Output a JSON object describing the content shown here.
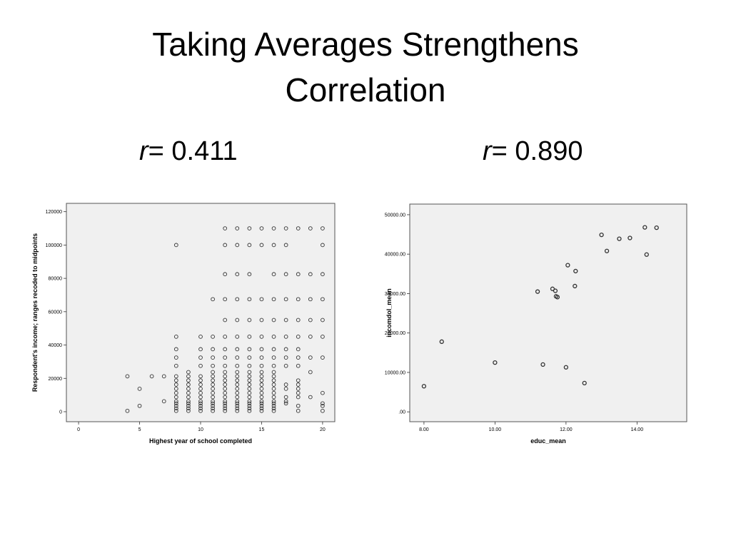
{
  "slide": {
    "title_line1": "Taking Averages Strengthens",
    "title_line2": "Correlation",
    "r_symbol": "r",
    "left_r_text": "= 0.411",
    "right_r_text": "= 0.890"
  },
  "chart_data": [
    {
      "type": "scatter",
      "title": "",
      "xlabel": "Highest year of school completed",
      "ylabel": "Respondent's income; ranges recoded to midpoints",
      "xlim": [
        -1,
        21
      ],
      "ylim": [
        -6000,
        125000
      ],
      "xticks": [
        0,
        5,
        10,
        15,
        20
      ],
      "yticks": [
        0,
        20000,
        40000,
        60000,
        80000,
        100000,
        120000
      ],
      "xtick_labels": [
        "0",
        "5",
        "10",
        "15",
        "20"
      ],
      "ytick_labels": [
        "0",
        "20000",
        "40000",
        "60000",
        "80000",
        "100000",
        "120000"
      ],
      "grid": false,
      "background": "#f0f0f0",
      "marker_color": "#333333",
      "points": [
        [
          4,
          500
        ],
        [
          4,
          21250
        ],
        [
          5,
          3500
        ],
        [
          5,
          13750
        ],
        [
          6,
          21250
        ],
        [
          7,
          6250
        ],
        [
          7,
          21250
        ],
        [
          8,
          500
        ],
        [
          8,
          2000
        ],
        [
          8,
          3500
        ],
        [
          8,
          5000
        ],
        [
          8,
          6250
        ],
        [
          8,
          8750
        ],
        [
          8,
          11250
        ],
        [
          8,
          13750
        ],
        [
          8,
          16250
        ],
        [
          8,
          18750
        ],
        [
          8,
          21250
        ],
        [
          8,
          27500
        ],
        [
          8,
          32500
        ],
        [
          8,
          37500
        ],
        [
          8,
          45000
        ],
        [
          8,
          100000
        ],
        [
          9,
          500
        ],
        [
          9,
          2000
        ],
        [
          9,
          3500
        ],
        [
          9,
          5000
        ],
        [
          9,
          6250
        ],
        [
          9,
          8750
        ],
        [
          9,
          11250
        ],
        [
          9,
          13750
        ],
        [
          9,
          16250
        ],
        [
          9,
          18750
        ],
        [
          9,
          21250
        ],
        [
          9,
          23750
        ],
        [
          10,
          500
        ],
        [
          10,
          2000
        ],
        [
          10,
          3500
        ],
        [
          10,
          5000
        ],
        [
          10,
          6250
        ],
        [
          10,
          8750
        ],
        [
          10,
          11250
        ],
        [
          10,
          13750
        ],
        [
          10,
          16250
        ],
        [
          10,
          18750
        ],
        [
          10,
          21250
        ],
        [
          10,
          27500
        ],
        [
          10,
          32500
        ],
        [
          10,
          37500
        ],
        [
          10,
          45000
        ],
        [
          11,
          500
        ],
        [
          11,
          2000
        ],
        [
          11,
          3500
        ],
        [
          11,
          5000
        ],
        [
          11,
          6250
        ],
        [
          11,
          8750
        ],
        [
          11,
          11250
        ],
        [
          11,
          13750
        ],
        [
          11,
          16250
        ],
        [
          11,
          18750
        ],
        [
          11,
          21250
        ],
        [
          11,
          23750
        ],
        [
          11,
          27500
        ],
        [
          11,
          32500
        ],
        [
          11,
          37500
        ],
        [
          11,
          45000
        ],
        [
          11,
          67500
        ],
        [
          12,
          500
        ],
        [
          12,
          2000
        ],
        [
          12,
          3500
        ],
        [
          12,
          5000
        ],
        [
          12,
          6250
        ],
        [
          12,
          8750
        ],
        [
          12,
          11250
        ],
        [
          12,
          13750
        ],
        [
          12,
          16250
        ],
        [
          12,
          18750
        ],
        [
          12,
          21250
        ],
        [
          12,
          23750
        ],
        [
          12,
          27500
        ],
        [
          12,
          32500
        ],
        [
          12,
          37500
        ],
        [
          12,
          45000
        ],
        [
          12,
          55000
        ],
        [
          12,
          67500
        ],
        [
          12,
          82500
        ],
        [
          12,
          100000
        ],
        [
          12,
          110000
        ],
        [
          13,
          500
        ],
        [
          13,
          2000
        ],
        [
          13,
          3500
        ],
        [
          13,
          5000
        ],
        [
          13,
          6250
        ],
        [
          13,
          8750
        ],
        [
          13,
          11250
        ],
        [
          13,
          13750
        ],
        [
          13,
          16250
        ],
        [
          13,
          18750
        ],
        [
          13,
          21250
        ],
        [
          13,
          23750
        ],
        [
          13,
          27500
        ],
        [
          13,
          32500
        ],
        [
          13,
          37500
        ],
        [
          13,
          45000
        ],
        [
          13,
          55000
        ],
        [
          13,
          67500
        ],
        [
          13,
          82500
        ],
        [
          13,
          100000
        ],
        [
          13,
          110000
        ],
        [
          14,
          500
        ],
        [
          14,
          2000
        ],
        [
          14,
          3500
        ],
        [
          14,
          5000
        ],
        [
          14,
          6250
        ],
        [
          14,
          8750
        ],
        [
          14,
          11250
        ],
        [
          14,
          13750
        ],
        [
          14,
          16250
        ],
        [
          14,
          18750
        ],
        [
          14,
          21250
        ],
        [
          14,
          23750
        ],
        [
          14,
          27500
        ],
        [
          14,
          32500
        ],
        [
          14,
          37500
        ],
        [
          14,
          45000
        ],
        [
          14,
          55000
        ],
        [
          14,
          67500
        ],
        [
          14,
          82500
        ],
        [
          14,
          100000
        ],
        [
          14,
          110000
        ],
        [
          15,
          500
        ],
        [
          15,
          2000
        ],
        [
          15,
          3500
        ],
        [
          15,
          5000
        ],
        [
          15,
          6250
        ],
        [
          15,
          8750
        ],
        [
          15,
          11250
        ],
        [
          15,
          13750
        ],
        [
          15,
          16250
        ],
        [
          15,
          18750
        ],
        [
          15,
          21250
        ],
        [
          15,
          23750
        ],
        [
          15,
          27500
        ],
        [
          15,
          32500
        ],
        [
          15,
          37500
        ],
        [
          15,
          45000
        ],
        [
          15,
          55000
        ],
        [
          15,
          67500
        ],
        [
          15,
          100000
        ],
        [
          15,
          110000
        ],
        [
          16,
          500
        ],
        [
          16,
          2000
        ],
        [
          16,
          3500
        ],
        [
          16,
          5000
        ],
        [
          16,
          6250
        ],
        [
          16,
          8750
        ],
        [
          16,
          11250
        ],
        [
          16,
          13750
        ],
        [
          16,
          16250
        ],
        [
          16,
          18750
        ],
        [
          16,
          21250
        ],
        [
          16,
          23750
        ],
        [
          16,
          27500
        ],
        [
          16,
          32500
        ],
        [
          16,
          37500
        ],
        [
          16,
          45000
        ],
        [
          16,
          55000
        ],
        [
          16,
          67500
        ],
        [
          16,
          82500
        ],
        [
          16,
          100000
        ],
        [
          16,
          110000
        ],
        [
          17,
          5000
        ],
        [
          17,
          6250
        ],
        [
          17,
          8750
        ],
        [
          17,
          13750
        ],
        [
          17,
          16250
        ],
        [
          17,
          27500
        ],
        [
          17,
          32500
        ],
        [
          17,
          37500
        ],
        [
          17,
          45000
        ],
        [
          17,
          55000
        ],
        [
          17,
          67500
        ],
        [
          17,
          82500
        ],
        [
          17,
          100000
        ],
        [
          17,
          110000
        ],
        [
          18,
          500
        ],
        [
          18,
          3500
        ],
        [
          18,
          8750
        ],
        [
          18,
          11250
        ],
        [
          18,
          13750
        ],
        [
          18,
          16250
        ],
        [
          18,
          18750
        ],
        [
          18,
          27500
        ],
        [
          18,
          32500
        ],
        [
          18,
          37500
        ],
        [
          18,
          45000
        ],
        [
          18,
          55000
        ],
        [
          18,
          67500
        ],
        [
          18,
          82500
        ],
        [
          18,
          110000
        ],
        [
          19,
          8750
        ],
        [
          19,
          23750
        ],
        [
          19,
          32500
        ],
        [
          19,
          45000
        ],
        [
          19,
          55000
        ],
        [
          19,
          67500
        ],
        [
          19,
          82500
        ],
        [
          19,
          110000
        ],
        [
          20,
          500
        ],
        [
          20,
          3500
        ],
        [
          20,
          5000
        ],
        [
          20,
          11250
        ],
        [
          20,
          32500
        ],
        [
          20,
          45000
        ],
        [
          20,
          55000
        ],
        [
          20,
          67500
        ],
        [
          20,
          82500
        ],
        [
          20,
          100000
        ],
        [
          20,
          110000
        ]
      ]
    },
    {
      "type": "scatter",
      "title": "",
      "xlabel": "educ_mean",
      "ylabel": "incomdol_mean",
      "xlim": [
        7.6,
        15.4
      ],
      "ylim": [
        -2500,
        52700
      ],
      "xticks": [
        8,
        10,
        12,
        14
      ],
      "yticks": [
        0,
        10000,
        20000,
        30000,
        40000,
        50000
      ],
      "xtick_labels": [
        "8.00",
        "10.00",
        "12.00",
        "14.00"
      ],
      "ytick_labels": [
        ".00",
        "10000.00",
        "20000.00",
        "30000.00",
        "40000.00",
        "50000.00"
      ],
      "grid": false,
      "background": "#f0f0f0",
      "marker_color": "#333333",
      "points": [
        [
          8.0,
          6500
        ],
        [
          8.5,
          17800
        ],
        [
          10.0,
          12500
        ],
        [
          11.2,
          30500
        ],
        [
          11.35,
          12000
        ],
        [
          11.62,
          31200
        ],
        [
          11.7,
          30700
        ],
        [
          11.72,
          29300
        ],
        [
          11.76,
          29100
        ],
        [
          12.0,
          11300
        ],
        [
          12.05,
          37200
        ],
        [
          12.25,
          31900
        ],
        [
          12.27,
          35700
        ],
        [
          12.52,
          7300
        ],
        [
          13.0,
          44900
        ],
        [
          13.15,
          40800
        ],
        [
          13.5,
          43900
        ],
        [
          13.8,
          44100
        ],
        [
          14.22,
          46800
        ],
        [
          14.27,
          39900
        ],
        [
          14.55,
          46700
        ]
      ]
    }
  ]
}
